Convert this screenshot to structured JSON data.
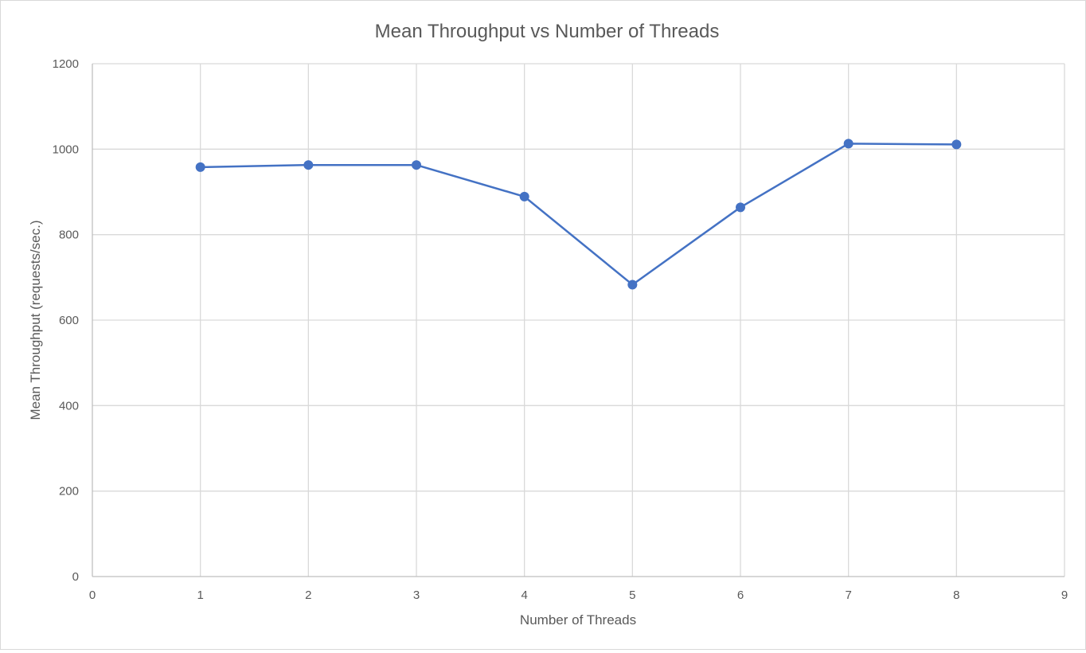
{
  "chart_data": {
    "type": "scatter",
    "title": "Mean Throughput vs Number of Threads",
    "xlabel": "Number of Threads",
    "ylabel": "Mean Throughput (requests/sec.)",
    "xlim": [
      0,
      9
    ],
    "ylim": [
      0,
      1200
    ],
    "xticks": [
      0,
      1,
      2,
      3,
      4,
      5,
      6,
      7,
      8,
      9
    ],
    "yticks": [
      0,
      200,
      400,
      600,
      800,
      1000,
      1200
    ],
    "grid": true,
    "legend": "none",
    "line_color": "#4472C4",
    "series": [
      {
        "x": [
          1,
          2,
          3,
          4,
          5,
          6,
          7,
          8
        ],
        "y": [
          958,
          963,
          963,
          889,
          683,
          864,
          1013,
          1011
        ]
      }
    ]
  }
}
